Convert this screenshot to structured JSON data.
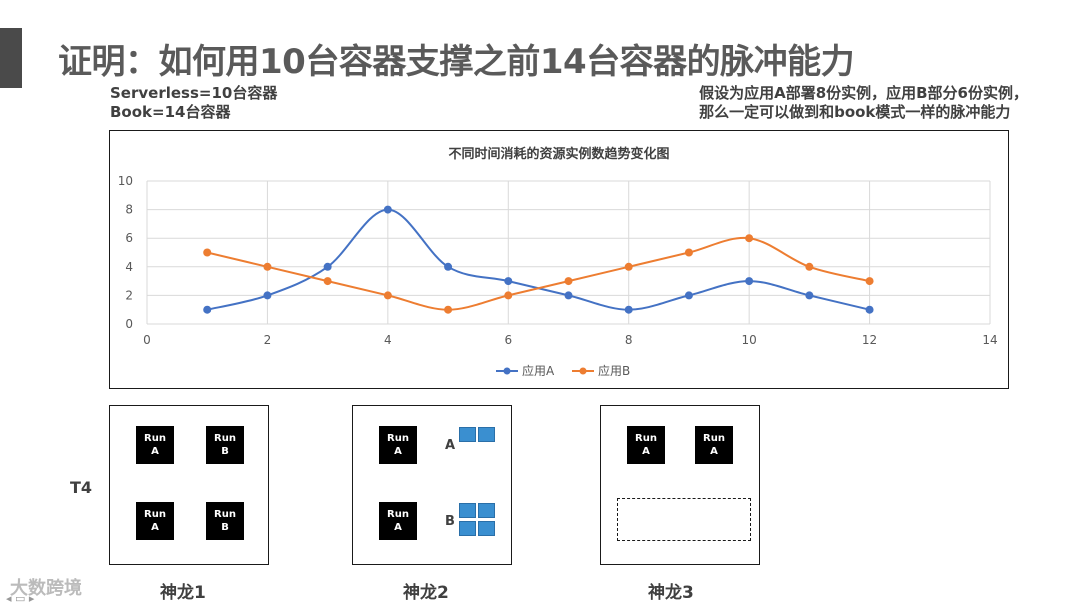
{
  "slide": {
    "title": "证明：如何用10台容器支撑之前14台容器的脉冲能力",
    "left_note_1": "Serverless=10台容器",
    "left_note_2": "Book=14台容器",
    "right_note_1": "假设为应用A部署8份实例，应用B部分6份实例，",
    "right_note_2": "那么一定可以做到和book模式一样的脉冲能力"
  },
  "chart_data": {
    "type": "line",
    "title": "不同时间消耗的资源实例数趋势变化图",
    "xlabel": "",
    "ylabel": "",
    "xlim": [
      0,
      14
    ],
    "ylim": [
      0,
      10
    ],
    "x_ticks": [
      "0",
      "2",
      "4",
      "6",
      "8",
      "10",
      "12",
      "14"
    ],
    "y_ticks": [
      "0",
      "2",
      "4",
      "6",
      "8",
      "10"
    ],
    "grid": true,
    "legend": "bottom",
    "x": [
      1,
      2,
      3,
      4,
      5,
      6,
      7,
      8,
      9,
      10,
      11,
      12
    ],
    "series": [
      {
        "name": "应用A",
        "color": "#4472c4",
        "values": [
          1,
          2,
          4,
          8,
          4,
          3,
          2,
          1,
          2,
          3,
          2,
          1
        ]
      },
      {
        "name": "应用B",
        "color": "#ed7d31",
        "values": [
          5,
          4,
          3,
          2,
          1,
          2,
          3,
          4,
          5,
          6,
          4,
          3
        ]
      }
    ]
  },
  "nodes": {
    "row_label": "T4",
    "run_word": "Run",
    "a": "A",
    "b": "B",
    "node1_label": "神龙1",
    "node2_label": "神龙2",
    "node3_label": "神龙3",
    "node2_block_a": "A",
    "node2_block_b": "B"
  },
  "watermark": "大数跨境",
  "colors": {
    "accent_blue": "#3a8fd0",
    "series_a": "#4472c4",
    "series_b": "#ed7d31"
  }
}
